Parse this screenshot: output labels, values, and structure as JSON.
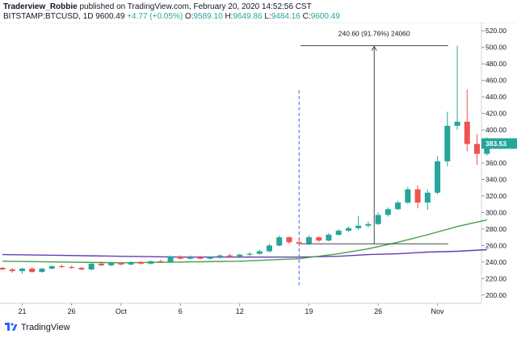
{
  "header": {
    "author": "Traderview_Robbie",
    "published_text": "published on TradingView.com, February 20, 2020 14:52:56 CST",
    "symbol": "BITSTAMP:BTCUSD, 1D",
    "last": "9600.49",
    "change": "+4.77 (+0.05%)",
    "o_label": "O:",
    "o": "9589.10",
    "h_label": "H:",
    "h": "9649.86",
    "l_label": "L:",
    "l": "9484.16",
    "c_label": "C:",
    "c": "9600.49"
  },
  "footer": {
    "brand": "TradingView"
  },
  "colors": {
    "up": "#26a69a",
    "down": "#ef5350",
    "ma_fast": "#43a047",
    "ma_slow": "#673ab7",
    "measure": "#434651",
    "marker": "#2962ff"
  },
  "chart_data": {
    "type": "candlestick",
    "title": "BITSTAMP:BTCUSD, 1D",
    "ylim": [
      190,
      530
    ],
    "y_ticks": [
      200,
      220,
      240,
      260,
      280,
      300,
      320,
      340,
      360,
      380,
      400,
      420,
      440,
      460,
      480,
      500,
      520
    ],
    "y_tick_labels": [
      "200.00",
      "220.00",
      "240.00",
      "260.00",
      "280.00",
      "300.00",
      "320.00",
      "340.00",
      "360.00",
      "380.00",
      "400.00",
      "420.00",
      "440.00",
      "460.00",
      "480.00",
      "500.00",
      "520.00"
    ],
    "x_ticks": [
      {
        "label": "21",
        "i": 2
      },
      {
        "label": "26",
        "i": 7
      },
      {
        "label": "Oct",
        "i": 12
      },
      {
        "label": "6",
        "i": 18
      },
      {
        "label": "12",
        "i": 24
      },
      {
        "label": "19",
        "i": 31
      },
      {
        "label": "26",
        "i": 38
      },
      {
        "label": "Nov",
        "i": 44
      }
    ],
    "candles": [
      {
        "o": 233,
        "h": 234,
        "l": 230,
        "c": 231
      },
      {
        "o": 231,
        "h": 233,
        "l": 227,
        "c": 229
      },
      {
        "o": 229,
        "h": 233,
        "l": 226,
        "c": 232
      },
      {
        "o": 232,
        "h": 234,
        "l": 227,
        "c": 228
      },
      {
        "o": 228,
        "h": 233,
        "l": 227,
        "c": 232
      },
      {
        "o": 232,
        "h": 236,
        "l": 231,
        "c": 235
      },
      {
        "o": 235,
        "h": 237,
        "l": 233,
        "c": 234
      },
      {
        "o": 234,
        "h": 236,
        "l": 232,
        "c": 233
      },
      {
        "o": 233,
        "h": 234,
        "l": 230,
        "c": 231
      },
      {
        "o": 231,
        "h": 240,
        "l": 230,
        "c": 238
      },
      {
        "o": 238,
        "h": 241,
        "l": 235,
        "c": 236
      },
      {
        "o": 236,
        "h": 240,
        "l": 235,
        "c": 239
      },
      {
        "o": 239,
        "h": 240,
        "l": 236,
        "c": 237
      },
      {
        "o": 237,
        "h": 241,
        "l": 236,
        "c": 240
      },
      {
        "o": 240,
        "h": 241,
        "l": 237,
        "c": 238
      },
      {
        "o": 238,
        "h": 242,
        "l": 237,
        "c": 241
      },
      {
        "o": 241,
        "h": 243,
        "l": 239,
        "c": 240
      },
      {
        "o": 240,
        "h": 248,
        "l": 239,
        "c": 247
      },
      {
        "o": 247,
        "h": 248,
        "l": 243,
        "c": 244
      },
      {
        "o": 244,
        "h": 248,
        "l": 243,
        "c": 246
      },
      {
        "o": 246,
        "h": 248,
        "l": 243,
        "c": 244
      },
      {
        "o": 244,
        "h": 247,
        "l": 243,
        "c": 246
      },
      {
        "o": 246,
        "h": 249,
        "l": 244,
        "c": 248
      },
      {
        "o": 248,
        "h": 250,
        "l": 245,
        "c": 246
      },
      {
        "o": 246,
        "h": 250,
        "l": 245,
        "c": 249
      },
      {
        "o": 249,
        "h": 252,
        "l": 247,
        "c": 250
      },
      {
        "o": 250,
        "h": 255,
        "l": 249,
        "c": 253
      },
      {
        "o": 253,
        "h": 262,
        "l": 252,
        "c": 260
      },
      {
        "o": 260,
        "h": 272,
        "l": 259,
        "c": 270
      },
      {
        "o": 270,
        "h": 271,
        "l": 262,
        "c": 264
      },
      {
        "o": 264,
        "h": 270,
        "l": 262,
        "c": 262
      },
      {
        "o": 262,
        "h": 272,
        "l": 261,
        "c": 270
      },
      {
        "o": 270,
        "h": 271,
        "l": 264,
        "c": 266
      },
      {
        "o": 266,
        "h": 275,
        "l": 265,
        "c": 273
      },
      {
        "o": 273,
        "h": 280,
        "l": 272,
        "c": 278
      },
      {
        "o": 278,
        "h": 283,
        "l": 276,
        "c": 281
      },
      {
        "o": 281,
        "h": 296,
        "l": 279,
        "c": 284
      },
      {
        "o": 284,
        "h": 289,
        "l": 282,
        "c": 286
      },
      {
        "o": 286,
        "h": 300,
        "l": 285,
        "c": 297
      },
      {
        "o": 297,
        "h": 306,
        "l": 295,
        "c": 304
      },
      {
        "o": 304,
        "h": 314,
        "l": 303,
        "c": 312
      },
      {
        "o": 312,
        "h": 331,
        "l": 310,
        "c": 328
      },
      {
        "o": 328,
        "h": 333,
        "l": 305,
        "c": 312
      },
      {
        "o": 312,
        "h": 328,
        "l": 303,
        "c": 324
      },
      {
        "o": 324,
        "h": 368,
        "l": 322,
        "c": 362
      },
      {
        "o": 362,
        "h": 422,
        "l": 356,
        "c": 405
      },
      {
        "o": 405,
        "h": 502,
        "l": 400,
        "c": 410
      },
      {
        "o": 410,
        "h": 449,
        "l": 374,
        "c": 383
      },
      {
        "o": 383,
        "h": 395,
        "l": 358,
        "c": 371
      },
      {
        "o": 371,
        "h": 391,
        "l": 369,
        "c": 383
      }
    ],
    "ma_fast": [
      [
        0,
        241
      ],
      [
        6,
        240
      ],
      [
        12,
        239
      ],
      [
        18,
        240
      ],
      [
        24,
        241
      ],
      [
        30,
        244
      ],
      [
        34,
        250
      ],
      [
        37,
        256
      ],
      [
        40,
        264
      ],
      [
        43,
        273
      ],
      [
        46,
        283
      ],
      [
        49,
        291
      ]
    ],
    "ma_slow": [
      [
        0,
        249
      ],
      [
        6,
        248
      ],
      [
        12,
        247
      ],
      [
        18,
        246
      ],
      [
        24,
        246
      ],
      [
        30,
        246
      ],
      [
        34,
        247
      ],
      [
        37,
        249
      ],
      [
        40,
        250
      ],
      [
        43,
        252
      ],
      [
        46,
        253
      ],
      [
        49,
        255
      ]
    ],
    "measure": {
      "label": "240.60 (91.76%) 24060",
      "from_value": 262,
      "to_value": 502,
      "start_i": 30,
      "end_i": 45
    },
    "price_label": "383.53",
    "price_value": 383.53,
    "marker_i": 30
  }
}
